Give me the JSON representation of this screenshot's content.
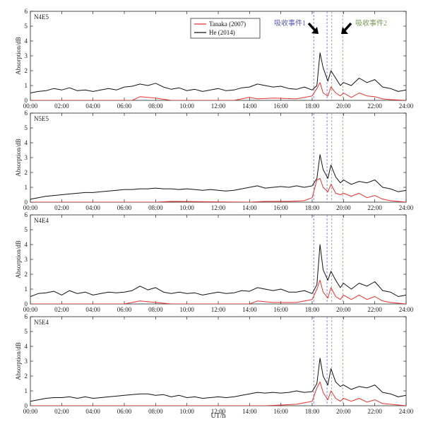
{
  "chart_data": {
    "type": "line",
    "xlabel": "UT/h",
    "ylabel": "Absorption/dB",
    "xlim": [
      0,
      24
    ],
    "ylim": [
      0,
      6
    ],
    "x_ticks": [
      0,
      2,
      4,
      6,
      8,
      10,
      12,
      14,
      16,
      18,
      20,
      22,
      24
    ],
    "x_tick_labels": [
      "00:00",
      "02:00",
      "04:00",
      "06:00",
      "08:00",
      "10:00",
      "12:00",
      "14:00",
      "16:00",
      "18:00",
      "20:00",
      "22:00",
      "24:00"
    ],
    "y_ticks": [
      0,
      1,
      2,
      3,
      4,
      5,
      6
    ],
    "y_tick_labels": [
      "0",
      "1",
      "2",
      "3",
      "4",
      "5",
      "6"
    ],
    "legend": {
      "placement": "top-center",
      "entries": [
        {
          "name": "Tanaka (2007)",
          "color": "#e8312f"
        },
        {
          "name": "He (2014)",
          "color": "#111111"
        }
      ]
    },
    "event_lines": {
      "event1": {
        "label": "吸收事件1",
        "color": "#6a6ac8",
        "x": [
          18.1,
          18.95
        ],
        "label_color": "#5a5ab4"
      },
      "event2": {
        "label": "吸收事件2",
        "color": "#8aa070",
        "x": [
          19.25,
          19.95
        ],
        "label_color": "#7a9a5a"
      }
    },
    "panels": [
      {
        "label": "N4E5",
        "series": [
          {
            "name": "He (2014)",
            "color": "#111111",
            "x": [
              0,
              0.5,
              1,
              1.5,
              2,
              2.5,
              3,
              3.5,
              4,
              4.5,
              5,
              5.5,
              6,
              6.5,
              7,
              7.5,
              8,
              8.5,
              9,
              9.5,
              10,
              10.5,
              11,
              11.5,
              12,
              12.5,
              13,
              13.5,
              14,
              14.5,
              15,
              15.5,
              16,
              16.5,
              17,
              17.5,
              18,
              18.3,
              18.5,
              18.7,
              19,
              19.2,
              19.5,
              19.8,
              20,
              20.5,
              21,
              21.5,
              22,
              22.5,
              23,
              23.5,
              24
            ],
            "values": [
              0.5,
              0.6,
              0.65,
              0.8,
              0.7,
              0.85,
              0.65,
              0.7,
              0.6,
              0.7,
              0.8,
              0.7,
              0.9,
              0.95,
              1.1,
              1.0,
              1.15,
              0.9,
              0.75,
              0.85,
              0.65,
              0.75,
              0.6,
              0.7,
              0.8,
              0.65,
              0.7,
              0.85,
              0.9,
              1.1,
              1.0,
              0.9,
              0.95,
              0.8,
              0.75,
              0.9,
              0.7,
              1.0,
              3.2,
              2.2,
              1.3,
              2.0,
              1.5,
              1.0,
              1.2,
              1.0,
              1.5,
              1.2,
              1.4,
              0.9,
              0.8,
              0.6,
              0.7
            ]
          },
          {
            "name": "Tanaka (2007)",
            "color": "#e8312f",
            "x": [
              0,
              6.5,
              7,
              8,
              9,
              13,
              14,
              14.5,
              15.5,
              17,
              18,
              18.3,
              18.5,
              18.7,
              19,
              19.2,
              19.5,
              19.8,
              20,
              20.5,
              21,
              21.5,
              22,
              22.5,
              23,
              24
            ],
            "values": [
              0,
              0,
              0.25,
              0.15,
              0,
              0,
              0.2,
              0.1,
              0.15,
              0.1,
              0.3,
              0.8,
              1.2,
              0.5,
              0.3,
              0.9,
              0.5,
              0.3,
              0.5,
              0.2,
              0.5,
              0.3,
              0.25,
              0.1,
              0.05,
              0
            ]
          }
        ]
      },
      {
        "label": "N5E5",
        "series": [
          {
            "name": "He (2014)",
            "color": "#111111",
            "x": [
              0,
              0.5,
              1,
              1.5,
              2,
              2.5,
              3,
              3.5,
              4,
              4.5,
              5,
              5.5,
              6,
              6.5,
              7,
              7.5,
              8,
              8.5,
              9,
              9.5,
              10,
              10.5,
              11,
              11.5,
              12,
              12.5,
              13,
              13.5,
              14,
              14.5,
              15,
              15.5,
              16,
              16.5,
              17,
              17.5,
              18,
              18.3,
              18.5,
              18.7,
              19,
              19.2,
              19.5,
              19.8,
              20,
              20.5,
              21,
              21.5,
              22,
              22.5,
              23,
              23.5,
              24
            ],
            "values": [
              0.2,
              0.3,
              0.4,
              0.45,
              0.5,
              0.55,
              0.6,
              0.65,
              0.65,
              0.7,
              0.75,
              0.8,
              0.85,
              0.85,
              0.9,
              0.9,
              0.95,
              0.9,
              0.9,
              0.85,
              0.9,
              0.85,
              0.8,
              0.85,
              0.8,
              0.75,
              0.8,
              0.9,
              1.0,
              1.1,
              0.95,
              1.0,
              1.05,
              1.0,
              1.1,
              1.0,
              1.1,
              1.6,
              3.2,
              2.2,
              1.6,
              2.5,
              1.7,
              1.3,
              1.5,
              1.2,
              1.4,
              1.3,
              1.5,
              1.0,
              0.9,
              0.7,
              0.8
            ]
          },
          {
            "name": "Tanaka (2007)",
            "color": "#e8312f",
            "x": [
              0,
              8,
              9,
              14,
              15,
              16.5,
              17.5,
              18,
              18.3,
              18.5,
              18.7,
              19,
              19.2,
              19.5,
              19.8,
              20,
              20.5,
              21,
              21.5,
              22,
              22.5,
              23,
              24
            ],
            "values": [
              0,
              0,
              0.05,
              0,
              0.05,
              0.05,
              0.1,
              0.3,
              1.5,
              1.6,
              1.0,
              0.7,
              1.2,
              0.6,
              0.5,
              0.6,
              0.4,
              0.6,
              0.3,
              0.45,
              0.2,
              0.1,
              0
            ]
          }
        ]
      },
      {
        "label": "N4E4",
        "series": [
          {
            "name": "He (2014)",
            "color": "#111111",
            "x": [
              0,
              0.5,
              1,
              1.5,
              2,
              2.5,
              3,
              3.5,
              4,
              4.5,
              5,
              5.5,
              6,
              6.5,
              7,
              7.5,
              8,
              8.5,
              9,
              9.5,
              10,
              10.5,
              11,
              11.5,
              12,
              12.5,
              13,
              13.5,
              14,
              14.5,
              15,
              15.5,
              16,
              16.5,
              17,
              17.5,
              18,
              18.3,
              18.5,
              18.7,
              19,
              19.2,
              19.5,
              19.8,
              20,
              20.5,
              21,
              21.5,
              22,
              22.5,
              23,
              23.5,
              24
            ],
            "values": [
              0.5,
              0.7,
              0.75,
              0.85,
              0.6,
              0.9,
              0.7,
              0.8,
              0.6,
              0.7,
              0.8,
              0.75,
              0.8,
              0.9,
              1.2,
              0.95,
              1.1,
              0.8,
              0.7,
              0.8,
              0.7,
              0.75,
              0.6,
              0.7,
              0.8,
              0.7,
              0.75,
              0.9,
              0.85,
              1.1,
              1.0,
              0.9,
              1.0,
              0.8,
              0.8,
              0.9,
              0.7,
              1.3,
              4.0,
              2.3,
              1.6,
              2.2,
              1.6,
              1.1,
              1.4,
              1.0,
              1.4,
              1.2,
              1.5,
              0.9,
              0.8,
              0.5,
              0.6
            ]
          },
          {
            "name": "Tanaka (2007)",
            "color": "#e8312f",
            "x": [
              0,
              6,
              6.5,
              7,
              8,
              9,
              14,
              14.5,
              15.5,
              17,
              18,
              18.3,
              18.5,
              18.7,
              19,
              19.2,
              19.5,
              19.8,
              20,
              20.5,
              21,
              21.5,
              22,
              22.5,
              23,
              24
            ],
            "values": [
              0,
              0,
              0.1,
              0.2,
              0.1,
              0,
              0,
              0.2,
              0.1,
              0.1,
              0.3,
              1.0,
              1.6,
              0.8,
              0.4,
              1.1,
              0.5,
              0.3,
              0.6,
              0.3,
              0.6,
              0.3,
              0.5,
              0.2,
              0.1,
              0
            ]
          }
        ]
      },
      {
        "label": "N5E4",
        "series": [
          {
            "name": "He (2014)",
            "color": "#111111",
            "x": [
              0,
              0.5,
              1,
              1.5,
              2,
              2.5,
              3,
              3.5,
              4,
              4.5,
              5,
              5.5,
              6,
              6.5,
              7,
              7.5,
              8,
              8.5,
              9,
              9.5,
              10,
              10.5,
              11,
              11.5,
              12,
              12.5,
              13,
              13.5,
              14,
              14.5,
              15,
              15.5,
              16,
              16.5,
              17,
              17.5,
              18,
              18.3,
              18.5,
              18.7,
              19,
              19.2,
              19.5,
              19.8,
              20,
              20.5,
              21,
              21.5,
              22,
              22.5,
              23,
              23.5,
              24
            ],
            "values": [
              0.3,
              0.4,
              0.5,
              0.55,
              0.55,
              0.6,
              0.5,
              0.6,
              0.5,
              0.55,
              0.6,
              0.65,
              0.7,
              0.75,
              0.8,
              0.8,
              0.7,
              0.75,
              0.6,
              0.7,
              0.55,
              0.6,
              0.5,
              0.55,
              0.6,
              0.55,
              0.6,
              0.7,
              0.8,
              0.9,
              0.85,
              0.9,
              0.85,
              0.9,
              1.0,
              0.9,
              0.95,
              1.5,
              3.2,
              2.0,
              1.4,
              2.5,
              1.6,
              1.3,
              1.4,
              1.1,
              1.3,
              1.2,
              1.4,
              0.9,
              0.8,
              0.6,
              0.7
            ]
          },
          {
            "name": "Tanaka (2007)",
            "color": "#e8312f",
            "x": [
              0,
              15,
              16,
              17,
              18,
              18.3,
              18.5,
              18.7,
              19,
              19.2,
              19.5,
              19.8,
              20,
              20.5,
              21,
              21.5,
              22,
              22.5,
              23,
              24
            ],
            "values": [
              0,
              0,
              0.05,
              0.1,
              0.3,
              1.2,
              1.6,
              0.9,
              0.4,
              1.0,
              0.5,
              0.3,
              0.5,
              0.3,
              0.5,
              0.25,
              0.4,
              0.15,
              0.1,
              0
            ]
          }
        ]
      }
    ]
  }
}
